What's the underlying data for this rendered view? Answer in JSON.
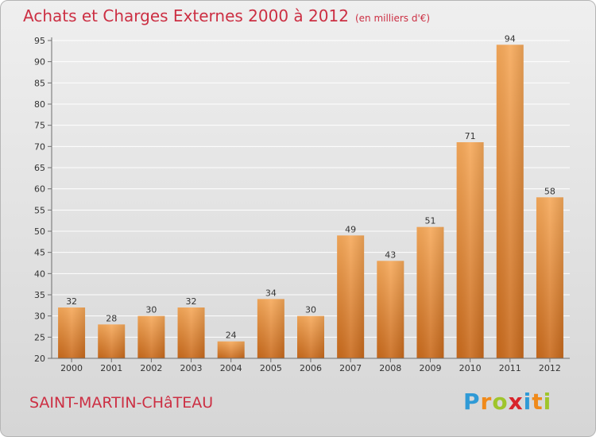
{
  "title": "Achats et Charges Externes 2000 à 2012",
  "subtitle": "(en milliers d'€)",
  "commune": "SAINT-MARTIN-CHâTEAU",
  "logo": {
    "letters": [
      "P",
      "r",
      "o",
      "x",
      "i",
      "t",
      "i"
    ]
  },
  "colors": {
    "title": "#cc2f43",
    "bar_top": "#f6a95a",
    "bar_bottom": "#c96a1c",
    "grid": "#ffffff",
    "axis": "#6e6e6e"
  },
  "chart_data": {
    "type": "bar",
    "categories": [
      "2000",
      "2001",
      "2002",
      "2003",
      "2004",
      "2005",
      "2006",
      "2007",
      "2008",
      "2009",
      "2010",
      "2011",
      "2012"
    ],
    "values": [
      32,
      28,
      30,
      32,
      24,
      34,
      30,
      49,
      43,
      51,
      71,
      94,
      58
    ],
    "ylim": [
      20,
      95
    ],
    "yticks": [
      20,
      25,
      30,
      35,
      40,
      45,
      50,
      55,
      60,
      65,
      70,
      75,
      80,
      85,
      90,
      95
    ],
    "grid": true,
    "data_labels": true
  }
}
